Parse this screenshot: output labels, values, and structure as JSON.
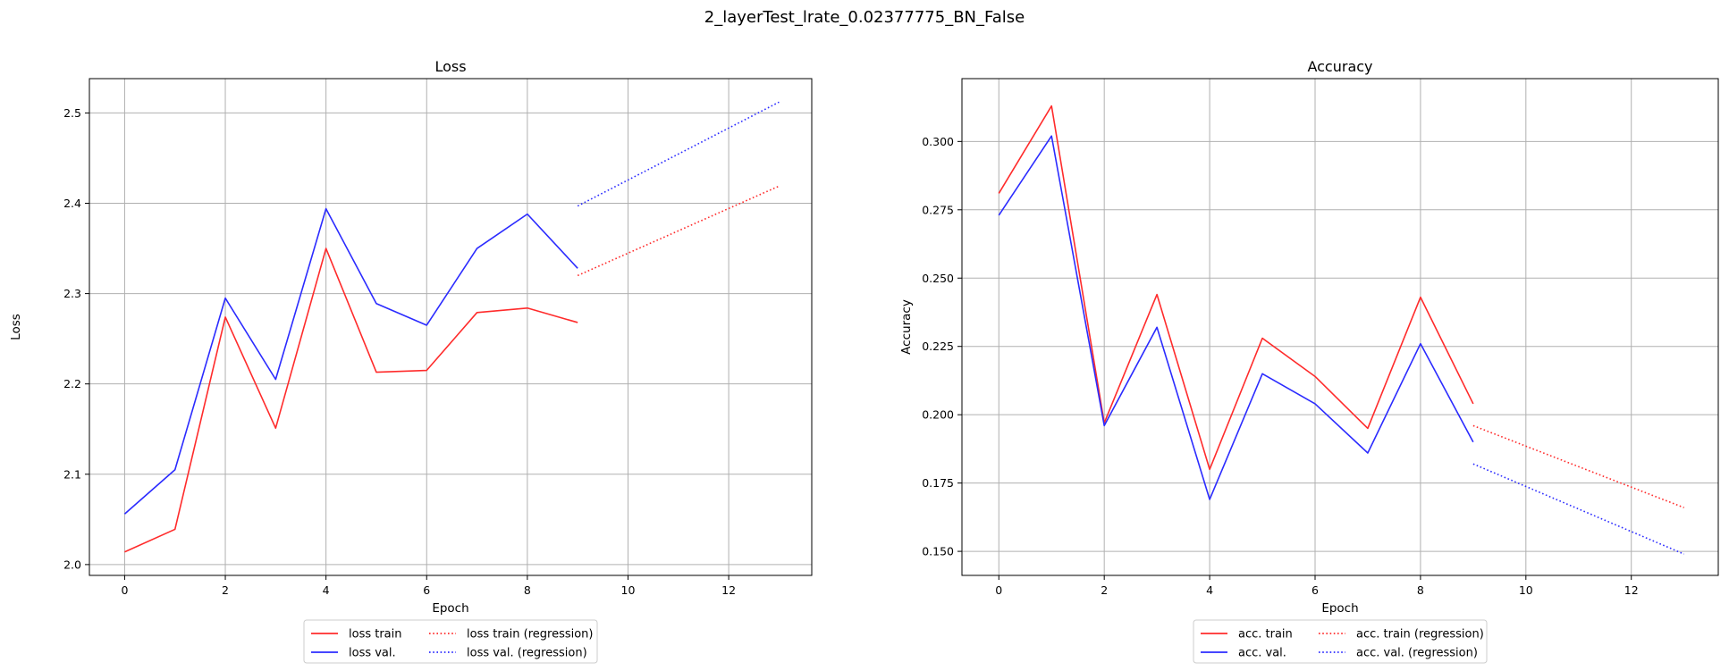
{
  "figure": {
    "suptitle": "2_layerTest_lrate_0.02377775_BN_False"
  },
  "chart_data": [
    {
      "type": "line",
      "title": "Loss",
      "xlabel": "Epoch",
      "ylabel": "Loss",
      "xlim": [
        -0.7,
        13.65
      ],
      "ylim": [
        1.988,
        2.538
      ],
      "xticks": [
        0,
        2,
        4,
        6,
        8,
        10,
        12
      ],
      "yticks": [
        2.0,
        2.1,
        2.2,
        2.3,
        2.4,
        2.5
      ],
      "ytick_format": 1,
      "grid": true,
      "legend_placement": "below",
      "series": [
        {
          "name": "loss train",
          "color": "#ff2b2b",
          "style": "solid",
          "x": [
            0,
            1,
            2,
            3,
            4,
            5,
            6,
            7,
            8,
            9
          ],
          "y": [
            2.014,
            2.039,
            2.274,
            2.151,
            2.35,
            2.213,
            2.215,
            2.279,
            2.284,
            2.268
          ]
        },
        {
          "name": "loss val.",
          "color": "#2b2bff",
          "style": "solid",
          "x": [
            0,
            1,
            2,
            3,
            4,
            5,
            6,
            7,
            8,
            9
          ],
          "y": [
            2.056,
            2.105,
            2.295,
            2.205,
            2.394,
            2.289,
            2.265,
            2.35,
            2.388,
            2.328
          ]
        },
        {
          "name": "loss train (regression)",
          "color": "#ff2b2b",
          "style": "dotted",
          "x": [
            9,
            13
          ],
          "y": [
            2.32,
            2.419
          ]
        },
        {
          "name": "loss val. (regression)",
          "color": "#2b2bff",
          "style": "dotted",
          "x": [
            9,
            13
          ],
          "y": [
            2.397,
            2.512
          ]
        }
      ]
    },
    {
      "type": "line",
      "title": "Accuracy",
      "xlabel": "Epoch",
      "ylabel": "Accuracy",
      "xlim": [
        -0.7,
        13.65
      ],
      "ylim": [
        0.1412,
        0.323
      ],
      "xticks": [
        0,
        2,
        4,
        6,
        8,
        10,
        12
      ],
      "yticks": [
        0.15,
        0.175,
        0.2,
        0.225,
        0.25,
        0.275,
        0.3
      ],
      "ytick_format": 3,
      "grid": true,
      "legend_placement": "below",
      "series": [
        {
          "name": "acc. train",
          "color": "#ff2b2b",
          "style": "solid",
          "x": [
            0,
            1,
            2,
            3,
            4,
            5,
            6,
            7,
            8,
            9
          ],
          "y": [
            0.281,
            0.313,
            0.197,
            0.244,
            0.18,
            0.228,
            0.214,
            0.195,
            0.243,
            0.204
          ]
        },
        {
          "name": "acc. val.",
          "color": "#2b2bff",
          "style": "solid",
          "x": [
            0,
            1,
            2,
            3,
            4,
            5,
            6,
            7,
            8,
            9
          ],
          "y": [
            0.273,
            0.302,
            0.196,
            0.232,
            0.169,
            0.215,
            0.204,
            0.186,
            0.226,
            0.19
          ]
        },
        {
          "name": "acc. train (regression)",
          "color": "#ff2b2b",
          "style": "dotted",
          "x": [
            9,
            13
          ],
          "y": [
            0.196,
            0.166
          ]
        },
        {
          "name": "acc. val. (regression)",
          "color": "#2b2bff",
          "style": "dotted",
          "x": [
            9,
            13
          ],
          "y": [
            0.182,
            0.149
          ]
        }
      ]
    }
  ]
}
